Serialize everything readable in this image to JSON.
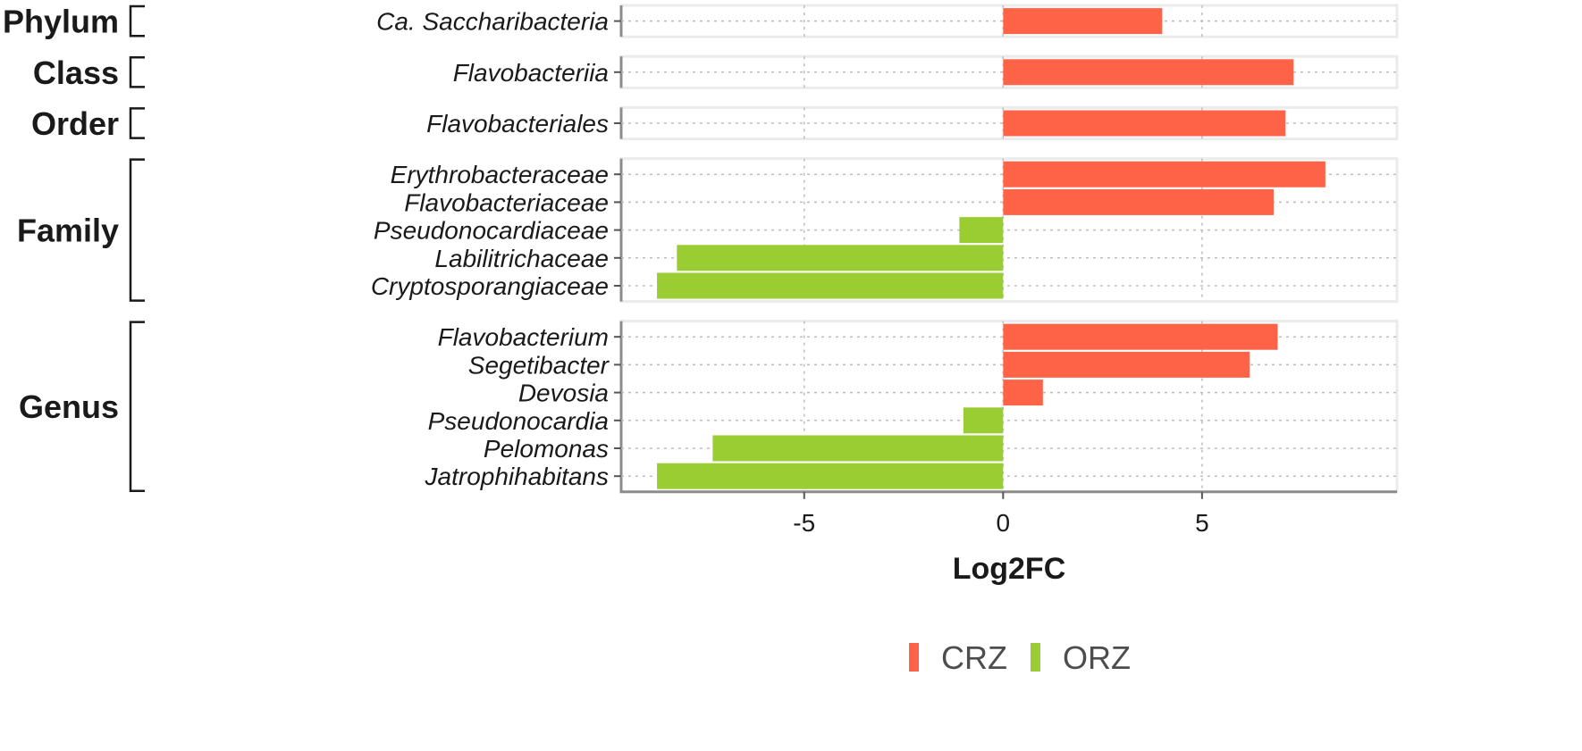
{
  "chart_data": {
    "type": "bar",
    "orientation": "horizontal",
    "xlabel": "Log2FC",
    "xlim": [
      -9.6,
      9.9
    ],
    "xticks": [
      -5,
      0,
      5
    ],
    "xtick_labels": [
      "-5",
      "0",
      "5"
    ],
    "grid": true,
    "legend_position": "bottom-center",
    "series": [
      {
        "name": "CRZ",
        "color": "#FF6347"
      },
      {
        "name": "ORZ",
        "color": "#9ACD32"
      }
    ],
    "panels": [
      {
        "rank": "Phylum",
        "items": [
          {
            "taxon": "Ca. Saccharibacteria",
            "value": 4.0,
            "group": "CRZ"
          }
        ]
      },
      {
        "rank": "Class",
        "items": [
          {
            "taxon": "Flavobacteriia",
            "value": 7.3,
            "group": "CRZ"
          }
        ]
      },
      {
        "rank": "Order",
        "items": [
          {
            "taxon": "Flavobacteriales",
            "value": 7.1,
            "group": "CRZ"
          }
        ]
      },
      {
        "rank": "Family",
        "items": [
          {
            "taxon": "Erythrobacteraceae",
            "value": 8.1,
            "group": "CRZ"
          },
          {
            "taxon": "Flavobacteriaceae",
            "value": 6.8,
            "group": "CRZ"
          },
          {
            "taxon": "Pseudonocardiaceae",
            "value": -1.1,
            "group": "ORZ"
          },
          {
            "taxon": "Labilitrichaceae",
            "value": -8.2,
            "group": "ORZ"
          },
          {
            "taxon": "Cryptosporangiaceae",
            "value": -8.7,
            "group": "ORZ"
          }
        ]
      },
      {
        "rank": "Genus",
        "items": [
          {
            "taxon": "Flavobacterium",
            "value": 6.9,
            "group": "CRZ"
          },
          {
            "taxon": "Segetibacter",
            "value": 6.2,
            "group": "CRZ"
          },
          {
            "taxon": "Devosia",
            "value": 1.0,
            "group": "CRZ"
          },
          {
            "taxon": "Pseudonocardia",
            "value": -1.0,
            "group": "ORZ"
          },
          {
            "taxon": "Pelomonas",
            "value": -7.3,
            "group": "ORZ"
          },
          {
            "taxon": "Jatrophihabitans",
            "value": -8.7,
            "group": "ORZ"
          }
        ]
      }
    ]
  }
}
